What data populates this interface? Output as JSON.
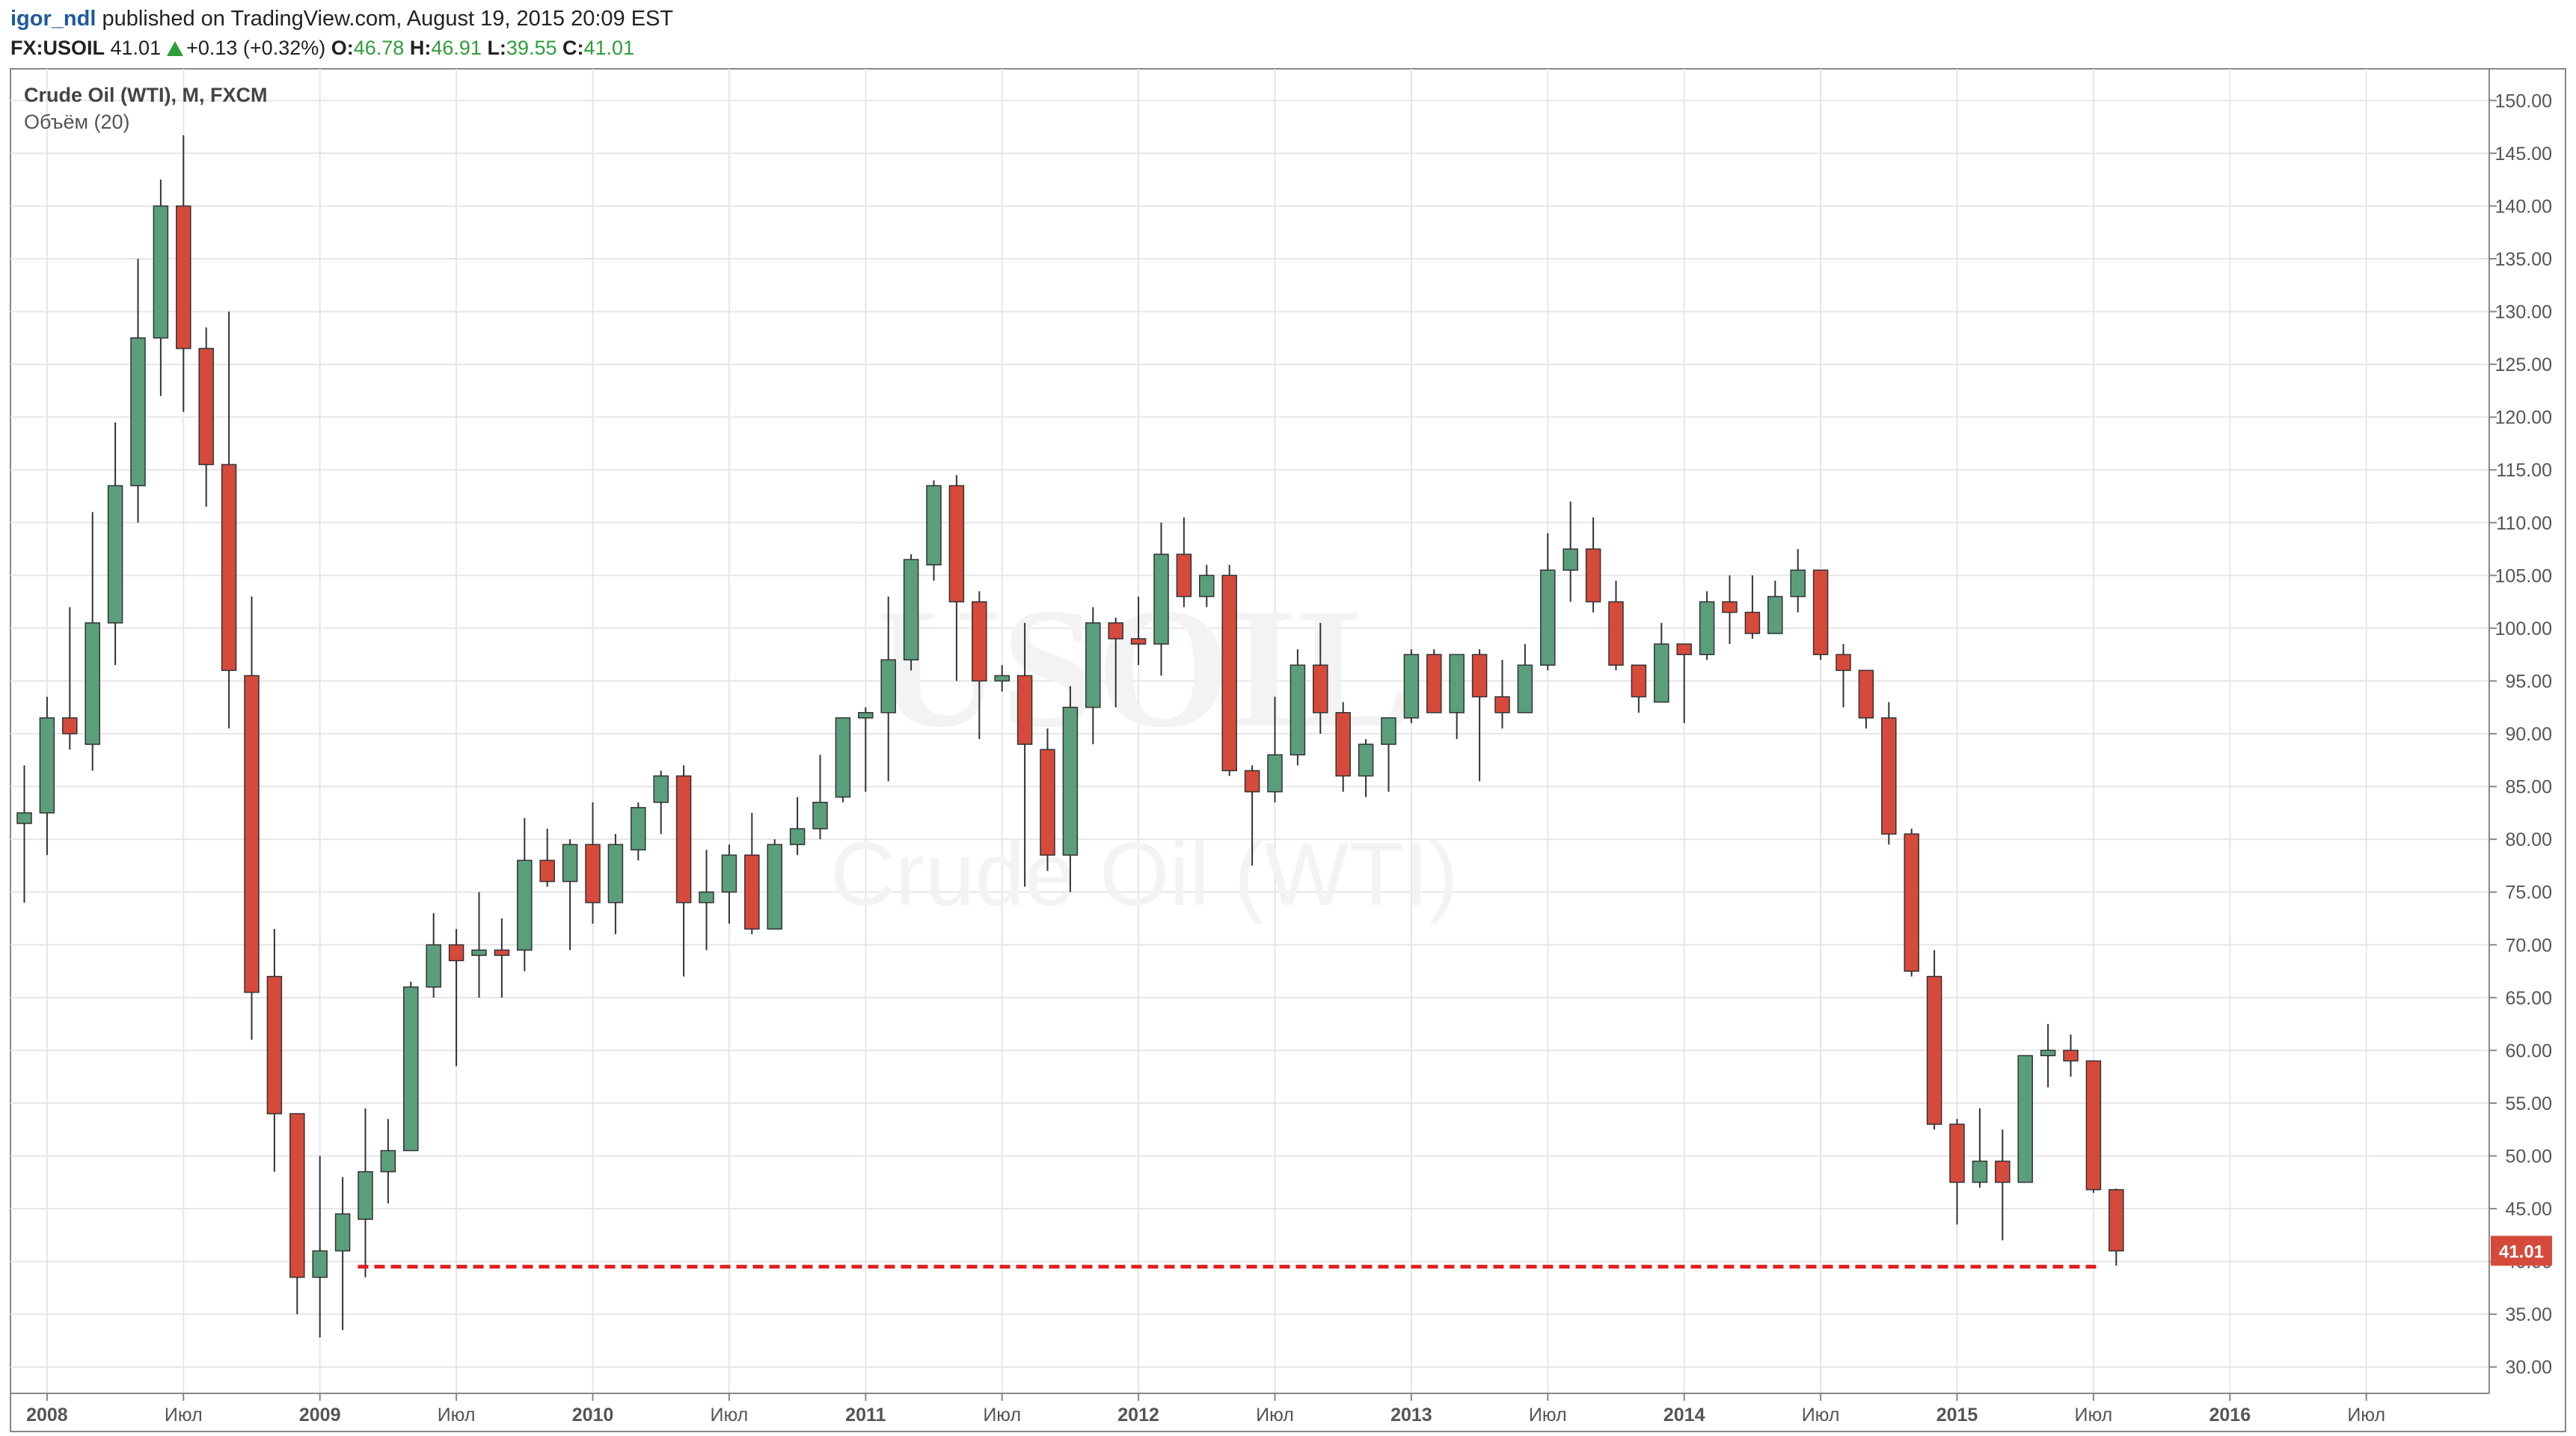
{
  "header": {
    "author": "igor_ndl",
    "published": " published on TradingView.com, August 19, 2015 20:09 EST",
    "symbol": "FX:USOIL",
    "last": "41.01",
    "change": "+0.13 (+0.32%)",
    "open_label": "O:",
    "open": "46.78",
    "high_label": "H:",
    "high": "46.91",
    "low_label": "L:",
    "low": "39.55",
    "close_label": "C:",
    "close": "41.01"
  },
  "legend": {
    "title": "Crude Oil (WTI), M, FXCM",
    "study": "Объём (20)"
  },
  "watermark": {
    "symbol": "USOIL",
    "name": "Crude Oil (WTI)"
  },
  "colors": {
    "up": "#5b9e7c",
    "down": "#d64a3b",
    "support": "#e02020",
    "grid": "#e6e6e6",
    "axis": "#555555"
  },
  "chart_data": {
    "type": "candlestick",
    "timeframe": "monthly",
    "ylim": [
      27.5,
      153
    ],
    "yticks": [
      30,
      35,
      40,
      45,
      50,
      55,
      60,
      65,
      70,
      75,
      80,
      85,
      90,
      95,
      100,
      105,
      110,
      115,
      120,
      125,
      130,
      135,
      140,
      145,
      150
    ],
    "x_labels": [
      "2008",
      "Июл",
      "2009",
      "Июл",
      "2010",
      "Июл",
      "2011",
      "Июл",
      "2012",
      "Июл",
      "2013",
      "Июл",
      "2014",
      "Июл",
      "2015",
      "Июл",
      "2016",
      "Июл"
    ],
    "last_price": "41.01",
    "support_line": {
      "price": 39.5,
      "from": "2009-03",
      "to": "2015-07"
    },
    "candles": [
      {
        "t": "2007-12",
        "o": 81.5,
        "h": 87.0,
        "l": 74.0,
        "c": 82.5
      },
      {
        "t": "2008-01",
        "o": 82.5,
        "h": 93.5,
        "l": 78.5,
        "c": 91.5
      },
      {
        "t": "2008-02",
        "o": 91.5,
        "h": 102.0,
        "l": 88.5,
        "c": 90.0
      },
      {
        "t": "2008-03",
        "o": 89.0,
        "h": 111.0,
        "l": 86.5,
        "c": 100.5
      },
      {
        "t": "2008-04",
        "o": 100.5,
        "h": 119.5,
        "l": 96.5,
        "c": 113.5
      },
      {
        "t": "2008-05",
        "o": 113.5,
        "h": 135.0,
        "l": 110.0,
        "c": 127.5
      },
      {
        "t": "2008-06",
        "o": 127.5,
        "h": 142.5,
        "l": 122.0,
        "c": 140.0
      },
      {
        "t": "2008-07",
        "o": 140.0,
        "h": 146.7,
        "l": 120.5,
        "c": 126.5
      },
      {
        "t": "2008-08",
        "o": 126.5,
        "h": 128.5,
        "l": 111.5,
        "c": 115.5
      },
      {
        "t": "2008-09",
        "o": 115.5,
        "h": 130.0,
        "l": 90.5,
        "c": 96.0
      },
      {
        "t": "2008-10",
        "o": 95.5,
        "h": 103.0,
        "l": 61.0,
        "c": 65.5
      },
      {
        "t": "2008-11",
        "o": 67.0,
        "h": 71.5,
        "l": 48.5,
        "c": 54.0
      },
      {
        "t": "2008-12",
        "o": 54.0,
        "h": 54.0,
        "l": 35.0,
        "c": 38.5
      },
      {
        "t": "2009-01",
        "o": 38.5,
        "h": 50.0,
        "l": 32.8,
        "c": 41.0
      },
      {
        "t": "2009-02",
        "o": 41.0,
        "h": 48.0,
        "l": 33.5,
        "c": 44.5
      },
      {
        "t": "2009-03",
        "o": 44.0,
        "h": 54.5,
        "l": 38.5,
        "c": 48.5
      },
      {
        "t": "2009-04",
        "o": 48.5,
        "h": 53.5,
        "l": 45.5,
        "c": 50.5
      },
      {
        "t": "2009-05",
        "o": 50.5,
        "h": 66.5,
        "l": 50.5,
        "c": 66.0
      },
      {
        "t": "2009-06",
        "o": 66.0,
        "h": 73.0,
        "l": 65.0,
        "c": 70.0
      },
      {
        "t": "2009-07",
        "o": 70.0,
        "h": 71.5,
        "l": 58.5,
        "c": 68.5
      },
      {
        "t": "2009-08",
        "o": 69.0,
        "h": 75.0,
        "l": 65.0,
        "c": 69.5
      },
      {
        "t": "2009-09",
        "o": 69.5,
        "h": 72.5,
        "l": 65.0,
        "c": 69.0
      },
      {
        "t": "2009-10",
        "o": 69.5,
        "h": 82.0,
        "l": 67.5,
        "c": 78.0
      },
      {
        "t": "2009-11",
        "o": 78.0,
        "h": 81.0,
        "l": 75.5,
        "c": 76.0
      },
      {
        "t": "2009-12",
        "o": 76.0,
        "h": 80.0,
        "l": 69.5,
        "c": 79.5
      },
      {
        "t": "2010-01",
        "o": 79.5,
        "h": 83.5,
        "l": 72.0,
        "c": 74.0
      },
      {
        "t": "2010-02",
        "o": 74.0,
        "h": 80.5,
        "l": 71.0,
        "c": 79.5
      },
      {
        "t": "2010-03",
        "o": 79.0,
        "h": 83.5,
        "l": 78.0,
        "c": 83.0
      },
      {
        "t": "2010-04",
        "o": 83.5,
        "h": 86.5,
        "l": 80.5,
        "c": 86.0
      },
      {
        "t": "2010-05",
        "o": 86.0,
        "h": 87.0,
        "l": 67.0,
        "c": 74.0
      },
      {
        "t": "2010-06",
        "o": 74.0,
        "h": 79.0,
        "l": 69.5,
        "c": 75.0
      },
      {
        "t": "2010-07",
        "o": 75.0,
        "h": 79.5,
        "l": 72.0,
        "c": 78.5
      },
      {
        "t": "2010-08",
        "o": 78.5,
        "h": 82.5,
        "l": 71.0,
        "c": 71.5
      },
      {
        "t": "2010-09",
        "o": 71.5,
        "h": 80.0,
        "l": 71.5,
        "c": 79.5
      },
      {
        "t": "2010-10",
        "o": 79.5,
        "h": 84.0,
        "l": 78.5,
        "c": 81.0
      },
      {
        "t": "2010-11",
        "o": 81.0,
        "h": 88.0,
        "l": 80.0,
        "c": 83.5
      },
      {
        "t": "2010-12",
        "o": 84.0,
        "h": 91.5,
        "l": 83.5,
        "c": 91.5
      },
      {
        "t": "2011-01",
        "o": 91.5,
        "h": 92.5,
        "l": 84.5,
        "c": 92.0
      },
      {
        "t": "2011-02",
        "o": 92.0,
        "h": 103.0,
        "l": 85.5,
        "c": 97.0
      },
      {
        "t": "2011-03",
        "o": 97.0,
        "h": 107.0,
        "l": 96.0,
        "c": 106.5
      },
      {
        "t": "2011-04",
        "o": 106.0,
        "h": 114.0,
        "l": 104.5,
        "c": 113.5
      },
      {
        "t": "2011-05",
        "o": 113.5,
        "h": 114.5,
        "l": 95.0,
        "c": 102.5
      },
      {
        "t": "2011-06",
        "o": 102.5,
        "h": 103.5,
        "l": 89.5,
        "c": 95.0
      },
      {
        "t": "2011-07",
        "o": 95.0,
        "h": 96.5,
        "l": 94.0,
        "c": 95.5
      },
      {
        "t": "2011-08",
        "o": 95.5,
        "h": 100.5,
        "l": 75.5,
        "c": 89.0
      },
      {
        "t": "2011-09",
        "o": 88.5,
        "h": 90.5,
        "l": 77.0,
        "c": 78.5
      },
      {
        "t": "2011-10",
        "o": 78.5,
        "h": 94.5,
        "l": 75.0,
        "c": 92.5
      },
      {
        "t": "2011-11",
        "o": 92.5,
        "h": 102.0,
        "l": 89.0,
        "c": 100.5
      },
      {
        "t": "2011-12",
        "o": 100.5,
        "h": 101.0,
        "l": 92.5,
        "c": 99.0
      },
      {
        "t": "2012-01",
        "o": 99.0,
        "h": 103.0,
        "l": 96.5,
        "c": 98.5
      },
      {
        "t": "2012-02",
        "o": 98.5,
        "h": 110.0,
        "l": 95.5,
        "c": 107.0
      },
      {
        "t": "2012-03",
        "o": 107.0,
        "h": 110.5,
        "l": 102.0,
        "c": 103.0
      },
      {
        "t": "2012-04",
        "o": 103.0,
        "h": 106.0,
        "l": 102.0,
        "c": 105.0
      },
      {
        "t": "2012-05",
        "o": 105.0,
        "h": 106.0,
        "l": 86.0,
        "c": 86.5
      },
      {
        "t": "2012-06",
        "o": 86.5,
        "h": 87.0,
        "l": 77.5,
        "c": 84.5
      },
      {
        "t": "2012-07",
        "o": 84.5,
        "h": 93.5,
        "l": 83.5,
        "c": 88.0
      },
      {
        "t": "2012-08",
        "o": 88.0,
        "h": 98.0,
        "l": 87.0,
        "c": 96.5
      },
      {
        "t": "2012-09",
        "o": 96.5,
        "h": 100.5,
        "l": 90.0,
        "c": 92.0
      },
      {
        "t": "2012-10",
        "o": 92.0,
        "h": 93.0,
        "l": 84.5,
        "c": 86.0
      },
      {
        "t": "2012-11",
        "o": 86.0,
        "h": 89.5,
        "l": 84.0,
        "c": 89.0
      },
      {
        "t": "2012-12",
        "o": 89.0,
        "h": 91.5,
        "l": 84.5,
        "c": 91.5
      },
      {
        "t": "2013-01",
        "o": 91.5,
        "h": 98.0,
        "l": 91.0,
        "c": 97.5
      },
      {
        "t": "2013-02",
        "o": 97.5,
        "h": 98.0,
        "l": 92.0,
        "c": 92.0
      },
      {
        "t": "2013-03",
        "o": 92.0,
        "h": 97.5,
        "l": 89.5,
        "c": 97.5
      },
      {
        "t": "2013-04",
        "o": 97.5,
        "h": 98.0,
        "l": 85.5,
        "c": 93.5
      },
      {
        "t": "2013-05",
        "o": 93.5,
        "h": 97.0,
        "l": 90.5,
        "c": 92.0
      },
      {
        "t": "2013-06",
        "o": 92.0,
        "h": 98.5,
        "l": 92.0,
        "c": 96.5
      },
      {
        "t": "2013-07",
        "o": 96.5,
        "h": 109.0,
        "l": 96.0,
        "c": 105.5
      },
      {
        "t": "2013-08",
        "o": 105.5,
        "h": 112.0,
        "l": 102.5,
        "c": 107.5
      },
      {
        "t": "2013-09",
        "o": 107.5,
        "h": 110.5,
        "l": 101.5,
        "c": 102.5
      },
      {
        "t": "2013-10",
        "o": 102.5,
        "h": 104.5,
        "l": 96.0,
        "c": 96.5
      },
      {
        "t": "2013-11",
        "o": 96.5,
        "h": 96.5,
        "l": 92.0,
        "c": 93.5
      },
      {
        "t": "2013-12",
        "o": 93.0,
        "h": 100.5,
        "l": 93.0,
        "c": 98.5
      },
      {
        "t": "2014-01",
        "o": 98.5,
        "h": 98.5,
        "l": 91.0,
        "c": 97.5
      },
      {
        "t": "2014-02",
        "o": 97.5,
        "h": 103.5,
        "l": 97.0,
        "c": 102.5
      },
      {
        "t": "2014-03",
        "o": 102.5,
        "h": 105.0,
        "l": 98.5,
        "c": 101.5
      },
      {
        "t": "2014-04",
        "o": 101.5,
        "h": 105.0,
        "l": 99.0,
        "c": 99.5
      },
      {
        "t": "2014-05",
        "o": 99.5,
        "h": 104.5,
        "l": 99.5,
        "c": 103.0
      },
      {
        "t": "2014-06",
        "o": 103.0,
        "h": 107.5,
        "l": 101.5,
        "c": 105.5
      },
      {
        "t": "2014-07",
        "o": 105.5,
        "h": 105.5,
        "l": 97.0,
        "c": 97.5
      },
      {
        "t": "2014-08",
        "o": 97.5,
        "h": 98.5,
        "l": 92.5,
        "c": 96.0
      },
      {
        "t": "2014-09",
        "o": 96.0,
        "h": 96.0,
        "l": 90.5,
        "c": 91.5
      },
      {
        "t": "2014-10",
        "o": 91.5,
        "h": 93.0,
        "l": 79.5,
        "c": 80.5
      },
      {
        "t": "2014-11",
        "o": 80.5,
        "h": 81.0,
        "l": 67.0,
        "c": 67.5
      },
      {
        "t": "2014-12",
        "o": 67.0,
        "h": 69.5,
        "l": 52.5,
        "c": 53.0
      },
      {
        "t": "2015-01",
        "o": 53.0,
        "h": 53.5,
        "l": 43.5,
        "c": 47.5
      },
      {
        "t": "2015-02",
        "o": 47.5,
        "h": 54.5,
        "l": 47.0,
        "c": 49.5
      },
      {
        "t": "2015-03",
        "o": 49.5,
        "h": 52.5,
        "l": 42.0,
        "c": 47.5
      },
      {
        "t": "2015-04",
        "o": 47.5,
        "h": 59.5,
        "l": 47.5,
        "c": 59.5
      },
      {
        "t": "2015-05",
        "o": 59.5,
        "h": 62.5,
        "l": 56.5,
        "c": 60.0
      },
      {
        "t": "2015-06",
        "o": 60.0,
        "h": 61.5,
        "l": 57.5,
        "c": 59.0
      },
      {
        "t": "2015-07",
        "o": 59.0,
        "h": 59.0,
        "l": 46.5,
        "c": 46.8
      },
      {
        "t": "2015-08",
        "o": 46.8,
        "h": 46.9,
        "l": 39.6,
        "c": 41.0
      }
    ]
  }
}
